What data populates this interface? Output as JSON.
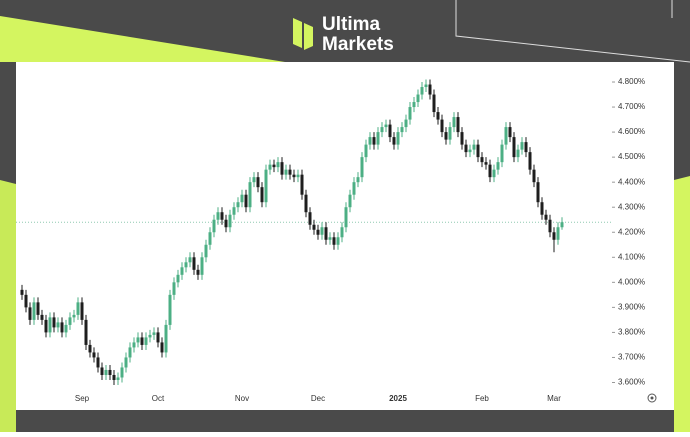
{
  "brand": {
    "line1": "Ultima",
    "line2": "Markets"
  },
  "chart_data": {
    "type": "candlestick",
    "categories": [
      null,
      null,
      null,
      null,
      null,
      null,
      null,
      null,
      null,
      null,
      null,
      null,
      null,
      null,
      null,
      "Sep",
      null,
      null,
      null,
      null,
      null,
      null,
      null,
      null,
      null,
      null,
      null,
      null,
      null,
      null,
      null,
      null,
      null,
      null,
      "Oct",
      null,
      null,
      null,
      null,
      null,
      null,
      null,
      null,
      null,
      null,
      null,
      null,
      null,
      null,
      null,
      null,
      null,
      null,
      null,
      null,
      "Nov",
      null,
      null,
      null,
      null,
      null,
      null,
      null,
      null,
      null,
      null,
      null,
      null,
      null,
      null,
      null,
      null,
      null,
      null,
      "Dec",
      null,
      null,
      null,
      null,
      null,
      null,
      null,
      null,
      null,
      null,
      null,
      null,
      null,
      null,
      null,
      null,
      null,
      null,
      null,
      "2025",
      null,
      null,
      null,
      null,
      null,
      null,
      null,
      null,
      null,
      null,
      null,
      null,
      null,
      null,
      null,
      null,
      null,
      null,
      null,
      null,
      "Feb",
      null,
      null,
      null,
      null,
      null,
      null,
      null,
      null,
      null,
      null,
      null,
      null,
      null,
      null,
      null,
      null,
      null,
      "Mar",
      null,
      null
    ],
    "open": [
      3.97,
      3.95,
      3.9,
      3.85,
      3.92,
      3.87,
      3.85,
      3.8,
      3.86,
      3.82,
      3.84,
      3.8,
      3.83,
      3.86,
      3.87,
      3.92,
      3.85,
      3.75,
      3.72,
      3.7,
      3.66,
      3.63,
      3.65,
      3.63,
      3.61,
      3.62,
      3.66,
      3.7,
      3.74,
      3.76,
      3.78,
      3.75,
      3.78,
      3.79,
      3.8,
      3.76,
      3.72,
      3.83,
      3.95,
      4.0,
      4.03,
      4.06,
      4.08,
      4.1,
      4.05,
      4.03,
      4.1,
      4.15,
      4.2,
      4.25,
      4.28,
      4.25,
      4.22,
      4.27,
      4.3,
      4.32,
      4.35,
      4.3,
      4.4,
      4.42,
      4.38,
      4.32,
      4.45,
      4.47,
      4.46,
      4.48,
      4.43,
      4.45,
      4.43,
      4.42,
      4.43,
      4.35,
      4.28,
      4.23,
      4.21,
      4.19,
      4.22,
      4.17,
      4.18,
      4.15,
      4.18,
      4.22,
      4.3,
      4.35,
      4.4,
      4.42,
      4.5,
      4.55,
      4.58,
      4.55,
      4.6,
      4.62,
      4.63,
      4.58,
      4.55,
      4.6,
      4.62,
      4.65,
      4.7,
      4.72,
      4.75,
      4.78,
      4.79,
      4.75,
      4.68,
      4.65,
      4.6,
      4.57,
      4.62,
      4.66,
      4.6,
      4.55,
      4.52,
      4.53,
      4.55,
      4.5,
      4.48,
      4.47,
      4.42,
      4.45,
      4.48,
      4.55,
      4.62,
      4.58,
      4.5,
      4.53,
      4.56,
      4.52,
      4.45,
      4.4,
      4.32,
      4.27,
      4.25,
      4.2,
      4.17,
      4.22
    ],
    "high": [
      3.99,
      3.97,
      3.92,
      3.94,
      3.94,
      3.89,
      3.87,
      3.88,
      3.88,
      3.86,
      3.86,
      3.85,
      3.88,
      3.89,
      3.94,
      3.94,
      3.87,
      3.77,
      3.74,
      3.72,
      3.68,
      3.67,
      3.67,
      3.65,
      3.64,
      3.68,
      3.72,
      3.76,
      3.78,
      3.8,
      3.8,
      3.8,
      3.81,
      3.82,
      3.82,
      3.78,
      3.85,
      3.97,
      4.02,
      4.05,
      4.08,
      4.1,
      4.12,
      4.12,
      4.07,
      4.12,
      4.17,
      4.22,
      4.27,
      4.3,
      4.3,
      4.27,
      4.29,
      4.32,
      4.34,
      4.37,
      4.37,
      4.42,
      4.44,
      4.44,
      4.4,
      4.47,
      4.49,
      4.49,
      4.5,
      4.5,
      4.47,
      4.47,
      4.45,
      4.45,
      4.45,
      4.37,
      4.3,
      4.25,
      4.23,
      4.24,
      4.24,
      4.2,
      4.2,
      4.2,
      4.24,
      4.32,
      4.37,
      4.42,
      4.44,
      4.52,
      4.57,
      4.6,
      4.6,
      4.62,
      4.64,
      4.65,
      4.65,
      4.6,
      4.62,
      4.64,
      4.67,
      4.72,
      4.74,
      4.77,
      4.8,
      4.81,
      4.81,
      4.77,
      4.7,
      4.67,
      4.62,
      4.64,
      4.68,
      4.68,
      4.62,
      4.57,
      4.55,
      4.57,
      4.57,
      4.52,
      4.5,
      4.49,
      4.47,
      4.5,
      4.57,
      4.64,
      4.64,
      4.6,
      4.55,
      4.58,
      4.58,
      4.54,
      4.47,
      4.42,
      4.34,
      4.29,
      4.27,
      4.22,
      4.24,
      4.26
    ],
    "low": [
      3.93,
      3.88,
      3.83,
      3.83,
      3.85,
      3.83,
      3.78,
      3.78,
      3.8,
      3.8,
      3.78,
      3.78,
      3.81,
      3.84,
      3.85,
      3.83,
      3.73,
      3.7,
      3.68,
      3.64,
      3.61,
      3.61,
      3.61,
      3.59,
      3.59,
      3.6,
      3.64,
      3.68,
      3.72,
      3.74,
      3.73,
      3.73,
      3.76,
      3.77,
      3.74,
      3.7,
      3.7,
      3.81,
      3.93,
      3.98,
      4.01,
      4.04,
      4.06,
      4.03,
      4.01,
      4.01,
      4.08,
      4.13,
      4.18,
      4.23,
      4.23,
      4.2,
      4.2,
      4.25,
      4.28,
      4.3,
      4.28,
      4.28,
      4.38,
      4.36,
      4.3,
      4.3,
      4.43,
      4.44,
      4.44,
      4.41,
      4.41,
      4.41,
      4.4,
      4.4,
      4.33,
      4.26,
      4.21,
      4.19,
      4.17,
      4.17,
      4.15,
      4.15,
      4.13,
      4.13,
      4.16,
      4.2,
      4.28,
      4.33,
      4.38,
      4.4,
      4.48,
      4.53,
      4.53,
      4.53,
      4.58,
      4.6,
      4.56,
      4.53,
      4.53,
      4.58,
      4.6,
      4.63,
      4.68,
      4.7,
      4.73,
      4.76,
      4.73,
      4.66,
      4.63,
      4.58,
      4.55,
      4.55,
      4.6,
      4.58,
      4.53,
      4.5,
      4.5,
      4.51,
      4.48,
      4.46,
      4.45,
      4.4,
      4.4,
      4.43,
      4.46,
      4.53,
      4.56,
      4.48,
      4.48,
      4.51,
      4.5,
      4.43,
      4.38,
      4.3,
      4.25,
      4.23,
      4.18,
      4.12,
      4.15,
      4.21
    ],
    "close": [
      3.95,
      3.9,
      3.85,
      3.92,
      3.87,
      3.85,
      3.8,
      3.86,
      3.82,
      3.84,
      3.8,
      3.83,
      3.86,
      3.87,
      3.92,
      3.85,
      3.75,
      3.72,
      3.7,
      3.66,
      3.63,
      3.65,
      3.63,
      3.61,
      3.62,
      3.66,
      3.7,
      3.74,
      3.76,
      3.78,
      3.75,
      3.78,
      3.79,
      3.8,
      3.76,
      3.72,
      3.83,
      3.95,
      4.0,
      4.03,
      4.06,
      4.08,
      4.1,
      4.05,
      4.03,
      4.1,
      4.15,
      4.2,
      4.25,
      4.28,
      4.25,
      4.22,
      4.27,
      4.3,
      4.32,
      4.35,
      4.3,
      4.4,
      4.42,
      4.38,
      4.32,
      4.45,
      4.47,
      4.46,
      4.48,
      4.43,
      4.45,
      4.43,
      4.42,
      4.43,
      4.35,
      4.28,
      4.23,
      4.21,
      4.19,
      4.22,
      4.17,
      4.18,
      4.15,
      4.18,
      4.22,
      4.3,
      4.35,
      4.4,
      4.42,
      4.5,
      4.55,
      4.58,
      4.55,
      4.6,
      4.62,
      4.63,
      4.58,
      4.55,
      4.6,
      4.62,
      4.65,
      4.7,
      4.72,
      4.75,
      4.78,
      4.79,
      4.75,
      4.68,
      4.65,
      4.6,
      4.57,
      4.62,
      4.66,
      4.6,
      4.55,
      4.52,
      4.53,
      4.55,
      4.5,
      4.48,
      4.47,
      4.42,
      4.45,
      4.48,
      4.55,
      4.62,
      4.58,
      4.5,
      4.53,
      4.56,
      4.52,
      4.45,
      4.4,
      4.32,
      4.27,
      4.25,
      4.2,
      4.17,
      4.22,
      4.24
    ],
    "up_color": "#4caf84",
    "down_color": "#1e1e1e",
    "price_line": 4.24,
    "ylim": [
      3.57,
      4.85
    ],
    "yticks": [
      {
        "value": 4.8,
        "label": "4.800%"
      },
      {
        "value": 4.7,
        "label": "4.700%"
      },
      {
        "value": 4.6,
        "label": "4.600%"
      },
      {
        "value": 4.5,
        "label": "4.500%"
      },
      {
        "value": 4.4,
        "label": "4.400%"
      },
      {
        "value": 4.3,
        "label": "4.300%"
      },
      {
        "value": 4.2,
        "label": "4.200%"
      },
      {
        "value": 4.1,
        "label": "4.100%"
      },
      {
        "value": 4.0,
        "label": "4.000%"
      },
      {
        "value": 3.9,
        "label": "3.900%"
      },
      {
        "value": 3.8,
        "label": "3.800%"
      },
      {
        "value": 3.7,
        "label": "3.700%"
      },
      {
        "value": 3.6,
        "label": "3.600%"
      }
    ]
  }
}
